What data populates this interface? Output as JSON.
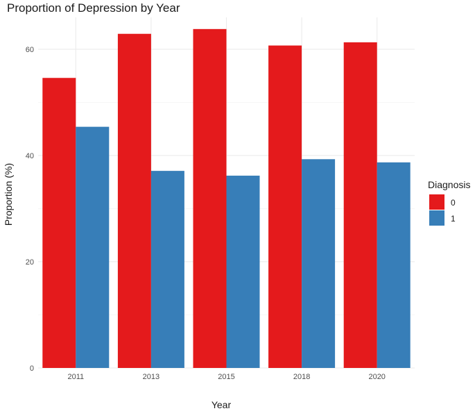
{
  "chart_data": {
    "type": "bar",
    "title": "Proportion of Depression by Year",
    "xlabel": "Year",
    "ylabel": "Proportion (%)",
    "categories": [
      "2011",
      "2013",
      "2015",
      "2018",
      "2020"
    ],
    "series": [
      {
        "name": "0",
        "color": "#E41A1C",
        "values": [
          54.6,
          62.9,
          63.8,
          60.7,
          61.3
        ]
      },
      {
        "name": "1",
        "color": "#377EB8",
        "values": [
          45.4,
          37.1,
          36.2,
          39.3,
          38.7
        ]
      }
    ],
    "ylim": [
      0,
      66
    ],
    "yticks": [
      0,
      20,
      40,
      60
    ],
    "grid": true,
    "legend": {
      "title": "Diagnosis",
      "position": "right"
    }
  }
}
